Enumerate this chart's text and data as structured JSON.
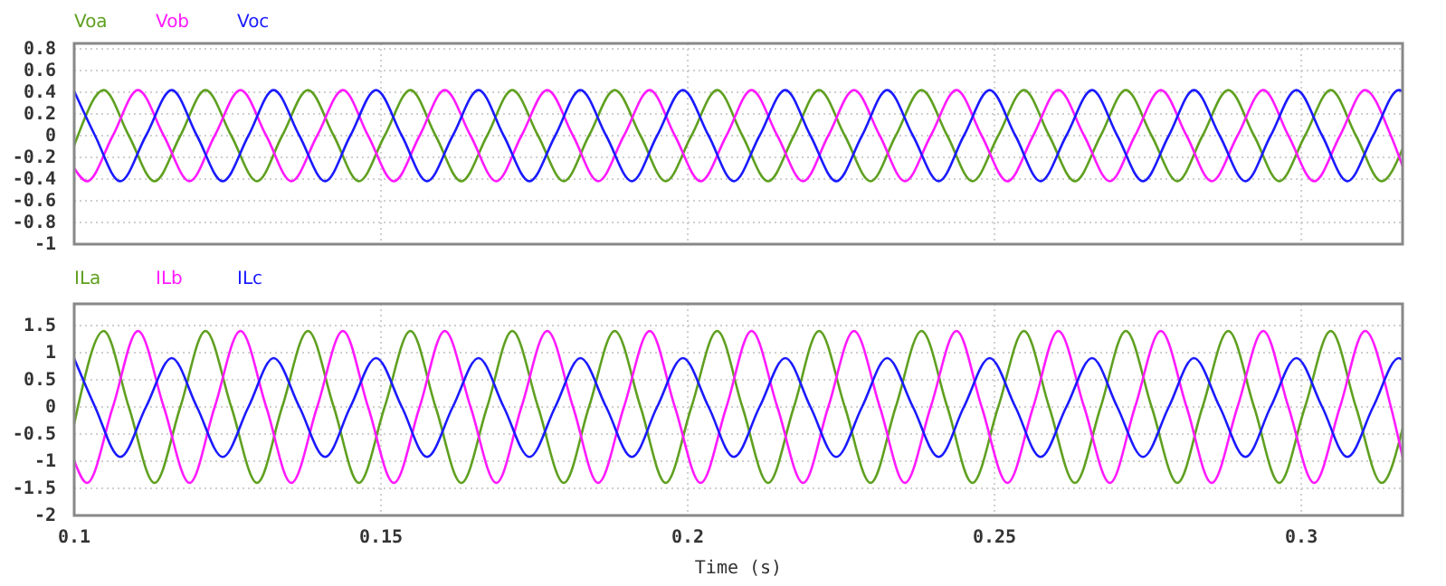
{
  "chart_data": [
    {
      "type": "line",
      "xlim": [
        0.1,
        0.3165
      ],
      "xticks": [
        0.1,
        0.15,
        0.2,
        0.25,
        0.3
      ],
      "ylim": [
        -1,
        0.85
      ],
      "yticks": [
        -1,
        -0.8,
        -0.6,
        -0.4,
        -0.2,
        0,
        0.2,
        0.4,
        0.6,
        0.8
      ],
      "grid": true,
      "legend": "top left",
      "tick_labels": "y",
      "series": [
        {
          "name": "Voa",
          "color": "#5fa020",
          "x": [
            0.1,
            0.1006,
            0.1048,
            0.1089,
            0.1131,
            0.1173,
            0.1214,
            0.1256,
            0.1298,
            0.1339,
            0.1381,
            0.1423,
            0.1464,
            0.1506,
            0.1548,
            0.1589,
            0.1631,
            0.1673,
            0.1714,
            0.1756,
            0.1798,
            0.1839,
            0.1881,
            0.1923,
            0.1964,
            0.2006,
            0.2048,
            0.2089,
            0.2131,
            0.2173,
            0.2214,
            0.2256,
            0.2298,
            0.2339,
            0.2381,
            0.2423,
            0.2464,
            0.2506,
            0.2548,
            0.2589,
            0.2631,
            0.2673,
            0.2714,
            0.2756,
            0.2798,
            0.2839,
            0.2881,
            0.2923,
            0.2964,
            0.3006,
            0.3048,
            0.3089,
            0.3131,
            0.3165
          ],
          "values": [
            -0.09,
            0,
            0.42,
            0,
            -0.42,
            0,
            0.42,
            0,
            -0.42,
            0,
            0.42,
            0,
            -0.42,
            0,
            0.42,
            0,
            -0.42,
            0,
            0.42,
            0,
            -0.42,
            0,
            0.42,
            0,
            -0.42,
            0,
            0.42,
            0,
            -0.42,
            0,
            0.42,
            0,
            -0.42,
            0,
            0.42,
            0,
            -0.42,
            0,
            0.42,
            0,
            -0.42,
            0,
            0.42,
            0,
            -0.42,
            0,
            0.42,
            0,
            -0.42,
            0,
            0.42,
            0,
            -0.42,
            -0.12
          ]
        },
        {
          "name": "Vob",
          "color": "#ff1aff",
          "x": [
            0.1,
            0.1021,
            0.1063,
            0.1104,
            0.1146,
            0.1188,
            0.1229,
            0.1271,
            0.1313,
            0.1354,
            0.1396,
            0.1438,
            0.1479,
            0.1521,
            0.1563,
            0.1604,
            0.1646,
            0.1688,
            0.1729,
            0.1771,
            0.1813,
            0.1854,
            0.1896,
            0.1938,
            0.1979,
            0.2021,
            0.2063,
            0.2104,
            0.2146,
            0.2188,
            0.2229,
            0.2271,
            0.2313,
            0.2354,
            0.2396,
            0.2438,
            0.2479,
            0.2521,
            0.2563,
            0.2604,
            0.2646,
            0.2688,
            0.2729,
            0.2771,
            0.2813,
            0.2854,
            0.2896,
            0.2938,
            0.2979,
            0.3021,
            0.3063,
            0.3104,
            0.3146,
            0.3165
          ],
          "values": [
            -0.3,
            -0.42,
            0,
            0.42,
            0,
            -0.42,
            0,
            0.42,
            0,
            -0.42,
            0,
            0.42,
            0,
            -0.42,
            0,
            0.42,
            0,
            -0.42,
            0,
            0.42,
            0,
            -0.42,
            0,
            0.42,
            0,
            -0.42,
            0,
            0.42,
            0,
            -0.42,
            0,
            0.42,
            0,
            -0.42,
            0,
            0.42,
            0,
            -0.42,
            0,
            0.42,
            0,
            -0.42,
            0,
            0.42,
            0,
            -0.42,
            0,
            0.42,
            0,
            -0.42,
            0,
            0.42,
            0,
            -0.28
          ]
        },
        {
          "name": "Voc",
          "color": "#1a1aff",
          "x": [
            0.1,
            0.1034,
            0.1075,
            0.1117,
            0.1159,
            0.12,
            0.1242,
            0.1284,
            0.1325,
            0.1367,
            0.1409,
            0.145,
            0.1492,
            0.1534,
            0.1575,
            0.1617,
            0.1659,
            0.17,
            0.1742,
            0.1784,
            0.1825,
            0.1867,
            0.1909,
            0.195,
            0.1992,
            0.2034,
            0.2075,
            0.2117,
            0.2159,
            0.22,
            0.2242,
            0.2284,
            0.2325,
            0.2367,
            0.2409,
            0.245,
            0.2492,
            0.2534,
            0.2575,
            0.2617,
            0.2659,
            0.27,
            0.2742,
            0.2784,
            0.2825,
            0.2867,
            0.2909,
            0.295,
            0.2992,
            0.3034,
            0.3075,
            0.3117,
            0.3159,
            0.3165
          ],
          "values": [
            0.41,
            0,
            -0.42,
            0,
            0.42,
            0,
            -0.42,
            0,
            0.42,
            0,
            -0.42,
            0,
            0.42,
            0,
            -0.42,
            0,
            0.42,
            0,
            -0.42,
            0,
            0.42,
            0,
            -0.42,
            0,
            0.42,
            0,
            -0.42,
            0,
            0.42,
            0,
            -0.42,
            0,
            0.42,
            0,
            -0.42,
            0,
            0.42,
            0,
            -0.42,
            0,
            0.42,
            0,
            -0.42,
            0,
            0.42,
            0,
            -0.42,
            0,
            0.42,
            0,
            -0.42,
            0,
            0.42,
            0.41
          ]
        }
      ]
    },
    {
      "type": "line",
      "xlabel": "Time (s)",
      "xlim": [
        0.1,
        0.3165
      ],
      "xticks": [
        0.1,
        0.15,
        0.2,
        0.25,
        0.3
      ],
      "ylim": [
        -2,
        1.9
      ],
      "yticks": [
        -2,
        -1.5,
        -1,
        -0.5,
        0,
        0.5,
        1,
        1.5
      ],
      "grid": true,
      "legend": "top left",
      "series": [
        {
          "name": "ILa",
          "color": "#5fa020",
          "x": [
            0.1,
            0.1006,
            0.1048,
            0.1089,
            0.1131,
            0.1173,
            0.1214,
            0.1256,
            0.1298,
            0.1339,
            0.1381,
            0.1423,
            0.1464,
            0.1506,
            0.1548,
            0.1589,
            0.1631,
            0.1673,
            0.1714,
            0.1756,
            0.1798,
            0.1839,
            0.1881,
            0.1923,
            0.1964,
            0.2006,
            0.2048,
            0.2089,
            0.2131,
            0.2173,
            0.2214,
            0.2256,
            0.2298,
            0.2339,
            0.2381,
            0.2423,
            0.2464,
            0.2506,
            0.2548,
            0.2589,
            0.2631,
            0.2673,
            0.2714,
            0.2756,
            0.2798,
            0.2839,
            0.2881,
            0.2923,
            0.2964,
            0.3006,
            0.3048,
            0.3089,
            0.3131,
            0.3165
          ],
          "values": [
            -0.31,
            0,
            1.4,
            0,
            -1.4,
            0,
            1.4,
            0,
            -1.4,
            0,
            1.4,
            0,
            -1.4,
            0,
            1.4,
            0,
            -1.4,
            0,
            1.4,
            0,
            -1.4,
            0,
            1.4,
            0,
            -1.4,
            0,
            1.4,
            0,
            -1.4,
            0,
            1.4,
            0,
            -1.4,
            0,
            1.4,
            0,
            -1.4,
            0,
            1.4,
            0,
            -1.4,
            0,
            1.4,
            0,
            -1.4,
            0,
            1.4,
            0,
            -1.4,
            0,
            1.4,
            0,
            -1.4,
            -0.4
          ]
        },
        {
          "name": "ILb",
          "color": "#ff1aff",
          "x": [
            0.1,
            0.1021,
            0.1063,
            0.1104,
            0.1146,
            0.1188,
            0.1229,
            0.1271,
            0.1313,
            0.1354,
            0.1396,
            0.1438,
            0.1479,
            0.1521,
            0.1563,
            0.1604,
            0.1646,
            0.1688,
            0.1729,
            0.1771,
            0.1813,
            0.1854,
            0.1896,
            0.1938,
            0.1979,
            0.2021,
            0.2063,
            0.2104,
            0.2146,
            0.2188,
            0.2229,
            0.2271,
            0.2313,
            0.2354,
            0.2396,
            0.2438,
            0.2479,
            0.2521,
            0.2563,
            0.2604,
            0.2646,
            0.2688,
            0.2729,
            0.2771,
            0.2813,
            0.2854,
            0.2896,
            0.2938,
            0.2979,
            0.3021,
            0.3063,
            0.3104,
            0.3146,
            0.3165
          ],
          "values": [
            -0.99,
            -1.4,
            0,
            1.4,
            0,
            -1.4,
            0,
            1.4,
            0,
            -1.4,
            0,
            1.4,
            0,
            -1.4,
            0,
            1.4,
            0,
            -1.4,
            0,
            1.4,
            0,
            -1.4,
            0,
            1.4,
            0,
            -1.4,
            0,
            1.4,
            0,
            -1.4,
            0,
            1.4,
            0,
            -1.4,
            0,
            1.4,
            0,
            -1.4,
            0,
            1.4,
            0,
            -1.4,
            0,
            1.4,
            0,
            -1.4,
            0,
            1.4,
            0,
            -1.4,
            0,
            1.4,
            0,
            -0.92
          ]
        },
        {
          "name": "ILc",
          "color": "#1a1aff",
          "x": [
            0.1,
            0.1034,
            0.1075,
            0.1117,
            0.1159,
            0.12,
            0.1242,
            0.1284,
            0.1325,
            0.1367,
            0.1409,
            0.145,
            0.1492,
            0.1534,
            0.1575,
            0.1617,
            0.1659,
            0.17,
            0.1742,
            0.1784,
            0.1825,
            0.1867,
            0.1909,
            0.195,
            0.1992,
            0.2034,
            0.2075,
            0.2117,
            0.2159,
            0.22,
            0.2242,
            0.2284,
            0.2325,
            0.2367,
            0.2409,
            0.245,
            0.2492,
            0.2534,
            0.2575,
            0.2617,
            0.2659,
            0.27,
            0.2742,
            0.2784,
            0.2825,
            0.2867,
            0.2909,
            0.295,
            0.2992,
            0.3034,
            0.3075,
            0.3117,
            0.3159,
            0.3165
          ],
          "values": [
            0.89,
            0,
            -0.92,
            0,
            0.9,
            0,
            -0.92,
            0,
            0.9,
            0,
            -0.92,
            0,
            0.9,
            0,
            -0.92,
            0,
            0.9,
            0,
            -0.92,
            0,
            0.9,
            0,
            -0.92,
            0,
            0.9,
            0,
            -0.92,
            0,
            0.9,
            0,
            -0.92,
            0,
            0.9,
            0,
            -0.92,
            0,
            0.9,
            0,
            -0.92,
            0,
            0.9,
            0,
            -0.92,
            0,
            0.9,
            0,
            -0.92,
            0,
            0.9,
            0,
            -0.92,
            0,
            0.9,
            0.87
          ]
        }
      ]
    }
  ]
}
